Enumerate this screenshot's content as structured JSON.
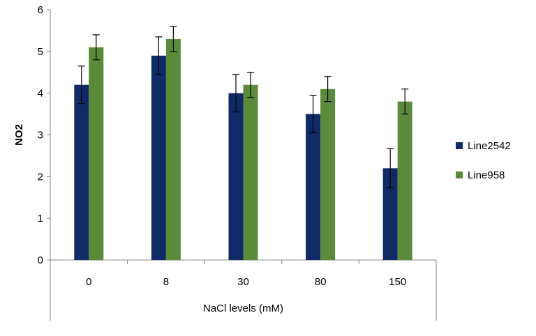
{
  "chart_data": {
    "type": "bar",
    "title": "",
    "xlabel": "NaCl levels (mM)",
    "ylabel": "NO2",
    "ylim": [
      0,
      6
    ],
    "yticks": [
      0,
      1,
      2,
      3,
      4,
      5,
      6
    ],
    "categories": [
      "0",
      "8",
      "30",
      "80",
      "150"
    ],
    "series": [
      {
        "name": "Line2542",
        "color": "#0f2a66",
        "values": [
          4.2,
          4.9,
          4.0,
          3.5,
          2.2
        ],
        "error": [
          0.45,
          0.45,
          0.45,
          0.45,
          0.47
        ]
      },
      {
        "name": "Line958",
        "color": "#5a8a3a",
        "values": [
          5.1,
          5.3,
          4.2,
          4.1,
          3.8
        ],
        "error": [
          0.3,
          0.3,
          0.3,
          0.3,
          0.3
        ]
      }
    ],
    "grid": false,
    "error_bars": true,
    "legend_position": "right"
  }
}
